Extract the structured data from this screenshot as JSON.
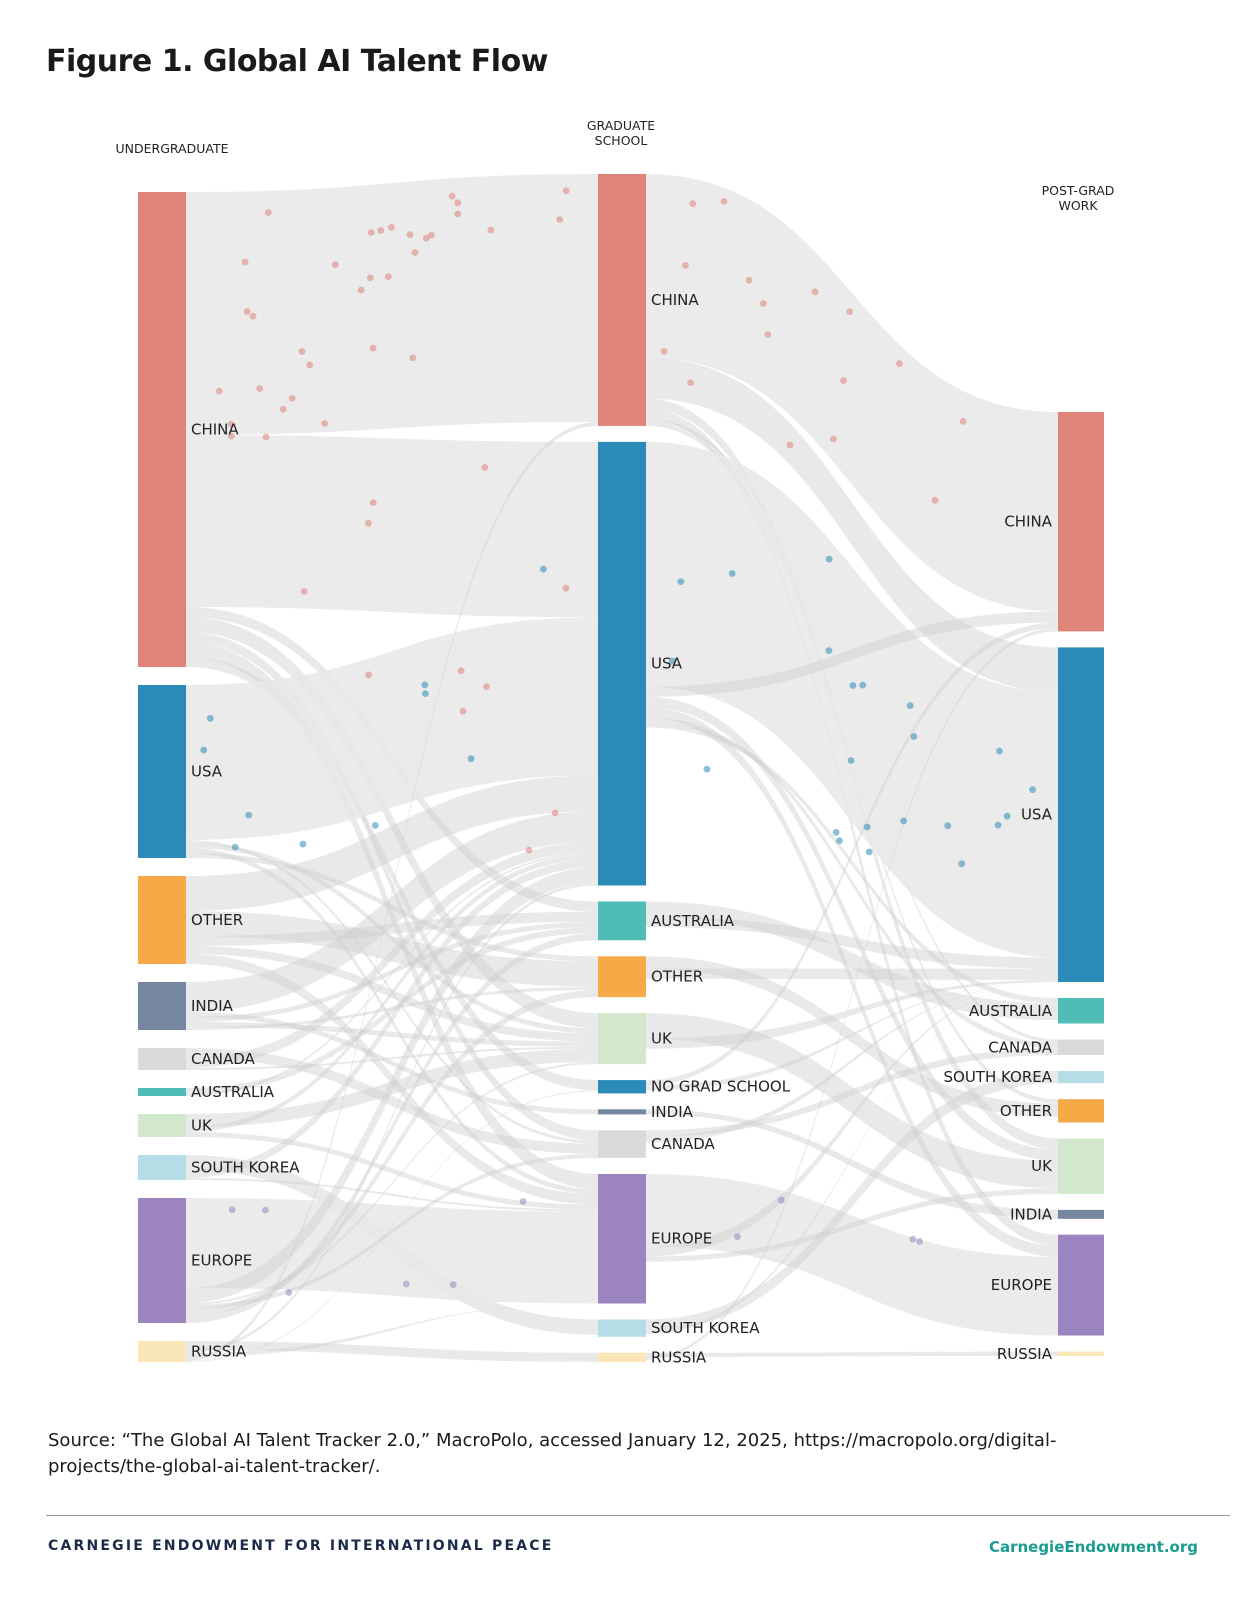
{
  "figure_title": "Figure 1. Global AI Talent Flow",
  "source_note": "Source: “The Global AI Talent Tracker 2.0,” MacroPolo, accessed January 12, 2025, https://macropolo.org/digital-projects/the-global-ai-talent-tracker/.",
  "footer": {
    "organization": "CARNEGIE ENDOWMENT FOR INTERNATIONAL PEACE",
    "url": "CarnegieEndowment.org"
  },
  "chart_data": {
    "type": "sankey",
    "stages": [
      {
        "id": "undergrad",
        "title": [
          "UNDERGRADUATE"
        ]
      },
      {
        "id": "grad",
        "title": [
          "GRADUATE",
          "SCHOOL"
        ]
      },
      {
        "id": "work",
        "title": [
          "POST-GRAD",
          "WORK"
        ]
      }
    ],
    "nodes": {
      "undergrad": [
        {
          "label": "CHINA",
          "value": 475,
          "color": "#de8479"
        },
        {
          "label": "USA",
          "value": 173,
          "color": "#2b8bb8"
        },
        {
          "label": "OTHER",
          "value": 88,
          "color": "#f5a947"
        },
        {
          "label": "INDIA",
          "value": 48,
          "color": "#74879f"
        },
        {
          "label": "CANADA",
          "value": 22,
          "color": "#d9d9d9"
        },
        {
          "label": "AUSTRALIA",
          "value": 8,
          "color": "#4fbdb5"
        },
        {
          "label": "UK",
          "value": 23,
          "color": "#d2e8cd"
        },
        {
          "label": "SOUTH KOREA",
          "value": 25,
          "color": "#b4dde6"
        },
        {
          "label": "EUROPE",
          "value": 125,
          "color": "#9b84bf"
        },
        {
          "label": "RUSSIA",
          "value": 21,
          "color": "#fbe6b7"
        }
      ],
      "grad": [
        {
          "label": "CHINA",
          "value": 247,
          "color": "#de8479"
        },
        {
          "label": "USA",
          "value": 435,
          "color": "#2b8bb8"
        },
        {
          "label": "AUSTRALIA",
          "value": 38,
          "color": "#4fbdb5"
        },
        {
          "label": "OTHER",
          "value": 40,
          "color": "#f5a947"
        },
        {
          "label": "UK",
          "value": 50,
          "color": "#d2e8cd"
        },
        {
          "label": "NO GRAD SCHOOL",
          "value": 13,
          "color": "#2b8bb8"
        },
        {
          "label": "INDIA",
          "value": 5,
          "color": "#74879f"
        },
        {
          "label": "CANADA",
          "value": 27,
          "color": "#d9d9d9"
        },
        {
          "label": "EUROPE",
          "value": 127,
          "color": "#9b84bf"
        },
        {
          "label": "SOUTH KOREA",
          "value": 17,
          "color": "#b4dde6"
        },
        {
          "label": "RUSSIA",
          "value": 9,
          "color": "#fbe6b7"
        }
      ],
      "work": [
        {
          "label": "CHINA",
          "value": 198,
          "color": "#de8479"
        },
        {
          "label": "USA",
          "value": 302,
          "color": "#2b8bb8"
        },
        {
          "label": "AUSTRALIA",
          "value": 23,
          "color": "#4fbdb5"
        },
        {
          "label": "CANADA",
          "value": 14,
          "color": "#d9d9d9"
        },
        {
          "label": "SOUTH KOREA",
          "value": 11,
          "color": "#b4dde6"
        },
        {
          "label": "OTHER",
          "value": 21,
          "color": "#f5a947"
        },
        {
          "label": "UK",
          "value": 50,
          "color": "#d2e8cd"
        },
        {
          "label": "INDIA",
          "value": 8,
          "color": "#74879f"
        },
        {
          "label": "EUROPE",
          "value": 91,
          "color": "#9b84bf"
        },
        {
          "label": "RUSSIA",
          "value": 4,
          "color": "#fbe6b7"
        }
      ]
    },
    "flows_undergrad_to_grad": [
      [
        "CHINA",
        "CHINA",
        243
      ],
      [
        "CHINA",
        "USA",
        172
      ],
      [
        "CHINA",
        "AUSTRALIA",
        10
      ],
      [
        "CHINA",
        "UK",
        15
      ],
      [
        "CHINA",
        "CANADA",
        10
      ],
      [
        "CHINA",
        "EUROPE",
        15
      ],
      [
        "CHINA",
        "NO GRAD SCHOOL",
        10
      ],
      [
        "USA",
        "USA",
        155
      ],
      [
        "USA",
        "CANADA",
        3
      ],
      [
        "USA",
        "UK",
        5
      ],
      [
        "USA",
        "EUROPE",
        5
      ],
      [
        "USA",
        "OTHER",
        5
      ],
      [
        "OTHER",
        "USA",
        35
      ],
      [
        "OTHER",
        "OTHER",
        25
      ],
      [
        "OTHER",
        "AUSTRALIA",
        10
      ],
      [
        "OTHER",
        "UK",
        8
      ],
      [
        "OTHER",
        "EUROPE",
        10
      ],
      [
        "INDIA",
        "USA",
        30
      ],
      [
        "INDIA",
        "INDIA",
        5
      ],
      [
        "INDIA",
        "AUSTRALIA",
        5
      ],
      [
        "INDIA",
        "UK",
        5
      ],
      [
        "INDIA",
        "OTHER",
        3
      ],
      [
        "CANADA",
        "CANADA",
        10
      ],
      [
        "CANADA",
        "USA",
        10
      ],
      [
        "CANADA",
        "UK",
        2
      ],
      [
        "AUSTRALIA",
        "AUSTRALIA",
        6
      ],
      [
        "AUSTRALIA",
        "USA",
        2
      ],
      [
        "UK",
        "UK",
        13
      ],
      [
        "UK",
        "USA",
        5
      ],
      [
        "UK",
        "EUROPE",
        5
      ],
      [
        "SOUTH KOREA",
        "SOUTH KOREA",
        15
      ],
      [
        "SOUTH KOREA",
        "USA",
        8
      ],
      [
        "SOUTH KOREA",
        "EUROPE",
        2
      ],
      [
        "EUROPE",
        "EUROPE",
        90
      ],
      [
        "EUROPE",
        "USA",
        15
      ],
      [
        "EUROPE",
        "UK",
        2
      ],
      [
        "EUROPE",
        "CANADA",
        4
      ],
      [
        "EUROPE",
        "OTHER",
        7
      ],
      [
        "EUROPE",
        "AUSTRALIA",
        7
      ],
      [
        "RUSSIA",
        "RUSSIA",
        9
      ],
      [
        "RUSSIA",
        "USA",
        3
      ],
      [
        "RUSSIA",
        "EUROPE",
        4
      ],
      [
        "RUSSIA",
        "CHINA",
        4
      ],
      [
        "RUSSIA",
        "NO GRAD SCHOOL",
        1
      ]
    ],
    "flows_grad_to_work": [
      [
        "CHINA",
        "CHINA",
        180
      ],
      [
        "CHINA",
        "USA",
        40
      ],
      [
        "CHINA",
        "UK",
        10
      ],
      [
        "CHINA",
        "EUROPE",
        10
      ],
      [
        "CHINA",
        "CANADA",
        3
      ],
      [
        "CHINA",
        "OTHER",
        4
      ],
      [
        "USA",
        "USA",
        240
      ],
      [
        "USA",
        "CHINA",
        10
      ],
      [
        "USA",
        "UK",
        10
      ],
      [
        "USA",
        "EUROPE",
        10
      ],
      [
        "USA",
        "CANADA",
        5
      ],
      [
        "USA",
        "AUSTRALIA",
        5
      ],
      [
        "AUSTRALIA",
        "AUSTRALIA",
        15
      ],
      [
        "AUSTRALIA",
        "USA",
        10
      ],
      [
        "OTHER",
        "OTHER",
        12
      ],
      [
        "OTHER",
        "USA",
        10
      ],
      [
        "UK",
        "UK",
        25
      ],
      [
        "UK",
        "USA",
        10
      ],
      [
        "NO GRAD SCHOOL",
        "CHINA",
        5
      ],
      [
        "NO GRAD SCHOOL",
        "USA",
        5
      ],
      [
        "INDIA",
        "INDIA",
        8
      ],
      [
        "CANADA",
        "CANADA",
        6
      ],
      [
        "CANADA",
        "USA",
        6
      ],
      [
        "EUROPE",
        "EUROPE",
        71
      ],
      [
        "EUROPE",
        "USA",
        10
      ],
      [
        "EUROPE",
        "UK",
        5
      ],
      [
        "SOUTH KOREA",
        "SOUTH KOREA",
        11
      ],
      [
        "SOUTH KOREA",
        "USA",
        3
      ],
      [
        "RUSSIA",
        "RUSSIA",
        4
      ],
      [
        "RUSSIA",
        "CHINA",
        3
      ]
    ]
  }
}
